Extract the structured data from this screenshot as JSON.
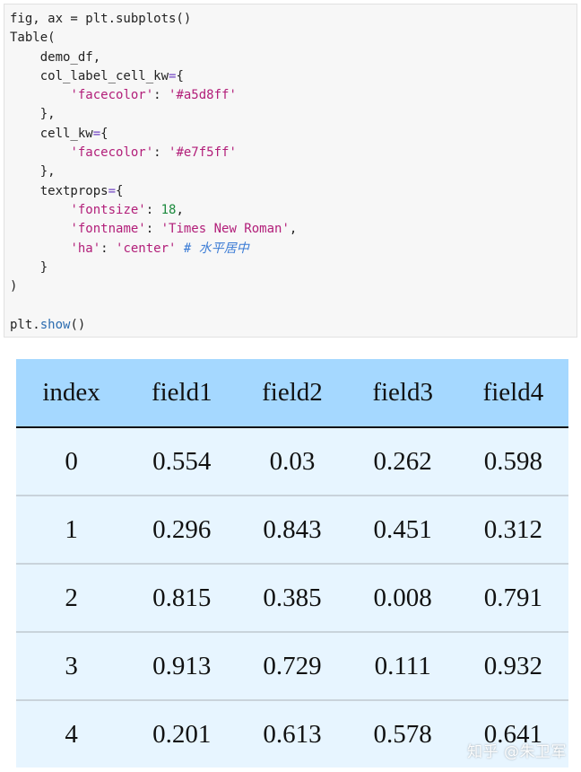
{
  "code": {
    "lines": [
      [
        {
          "t": "fig, ax = plt.subplots()",
          "c": ""
        }
      ],
      [
        {
          "t": "Table(",
          "c": ""
        }
      ],
      [
        {
          "t": "    demo_df,",
          "c": ""
        }
      ],
      [
        {
          "t": "    col_label_cell_kw",
          "c": ""
        },
        {
          "t": "=",
          "c": "tok-kw"
        },
        {
          "t": "{",
          "c": ""
        }
      ],
      [
        {
          "t": "        ",
          "c": ""
        },
        {
          "t": "'facecolor'",
          "c": "tok-str"
        },
        {
          "t": ": ",
          "c": ""
        },
        {
          "t": "'#a5d8ff'",
          "c": "tok-str"
        }
      ],
      [
        {
          "t": "    },",
          "c": ""
        }
      ],
      [
        {
          "t": "    cell_kw",
          "c": ""
        },
        {
          "t": "=",
          "c": "tok-kw"
        },
        {
          "t": "{",
          "c": ""
        }
      ],
      [
        {
          "t": "        ",
          "c": ""
        },
        {
          "t": "'facecolor'",
          "c": "tok-str"
        },
        {
          "t": ": ",
          "c": ""
        },
        {
          "t": "'#e7f5ff'",
          "c": "tok-str"
        }
      ],
      [
        {
          "t": "    },",
          "c": ""
        }
      ],
      [
        {
          "t": "    textprops",
          "c": ""
        },
        {
          "t": "=",
          "c": "tok-kw"
        },
        {
          "t": "{",
          "c": ""
        }
      ],
      [
        {
          "t": "        ",
          "c": ""
        },
        {
          "t": "'fontsize'",
          "c": "tok-str"
        },
        {
          "t": ": ",
          "c": ""
        },
        {
          "t": "18",
          "c": "tok-num"
        },
        {
          "t": ",",
          "c": ""
        }
      ],
      [
        {
          "t": "        ",
          "c": ""
        },
        {
          "t": "'fontname'",
          "c": "tok-str"
        },
        {
          "t": ": ",
          "c": ""
        },
        {
          "t": "'Times New Roman'",
          "c": "tok-str"
        },
        {
          "t": ",",
          "c": ""
        }
      ],
      [
        {
          "t": "        ",
          "c": ""
        },
        {
          "t": "'ha'",
          "c": "tok-str"
        },
        {
          "t": ": ",
          "c": ""
        },
        {
          "t": "'center'",
          "c": "tok-str"
        },
        {
          "t": " # 水平居中",
          "c": "tok-comment"
        }
      ],
      [
        {
          "t": "    }",
          "c": ""
        }
      ],
      [
        {
          "t": ")",
          "c": ""
        }
      ],
      [
        {
          "t": "",
          "c": ""
        }
      ],
      [
        {
          "t": "plt.",
          "c": ""
        },
        {
          "t": "show",
          "c": "tok-comment-plain"
        },
        {
          "t": "()",
          "c": ""
        }
      ]
    ]
  },
  "table": {
    "header_color": "#a5d8ff",
    "cell_color": "#e7f5ff",
    "columns": [
      "index",
      "field1",
      "field2",
      "field3",
      "field4"
    ],
    "rows": [
      [
        "0",
        "0.554",
        "0.03",
        "0.262",
        "0.598"
      ],
      [
        "1",
        "0.296",
        "0.843",
        "0.451",
        "0.312"
      ],
      [
        "2",
        "0.815",
        "0.385",
        "0.008",
        "0.791"
      ],
      [
        "3",
        "0.913",
        "0.729",
        "0.111",
        "0.932"
      ],
      [
        "4",
        "0.201",
        "0.613",
        "0.578",
        "0.641"
      ]
    ]
  },
  "watermark": {
    "text": "知乎 @朱卫军"
  }
}
